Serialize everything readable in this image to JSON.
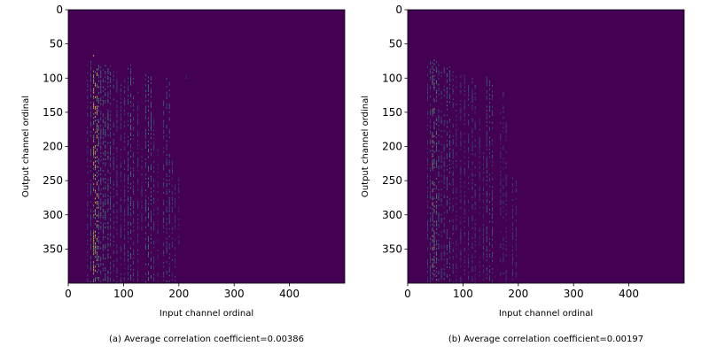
{
  "chart_data": [
    {
      "type": "heatmap",
      "xlabel": "Input channel ordinal",
      "ylabel": "Output channel ordinal",
      "xlim": [
        0,
        500
      ],
      "ylim": [
        400,
        0
      ],
      "x_ticks": [
        0,
        100,
        200,
        300,
        400
      ],
      "y_ticks": [
        0,
        50,
        100,
        150,
        200,
        250,
        300,
        350
      ],
      "caption": "(a) Average correlation coefficient=0.00386",
      "background_color": "#440154",
      "colormap": [
        "#440154",
        "#31688e",
        "#35b779",
        "#fde725"
      ],
      "column_bands": [
        {
          "x": 35,
          "y_start": 80,
          "y_end": 398,
          "intensity": 0.35
        },
        {
          "x": 41,
          "y_start": 75,
          "y_end": 398,
          "intensity": 0.45
        },
        {
          "x": 46,
          "y_start": 66,
          "y_end": 398,
          "intensity": 0.9
        },
        {
          "x": 49,
          "y_start": 70,
          "y_end": 398,
          "intensity": 1.0
        },
        {
          "x": 52,
          "y_start": 72,
          "y_end": 398,
          "intensity": 1.0
        },
        {
          "x": 55,
          "y_start": 75,
          "y_end": 398,
          "intensity": 0.7
        },
        {
          "x": 59,
          "y_start": 80,
          "y_end": 398,
          "intensity": 0.55
        },
        {
          "x": 63,
          "y_start": 78,
          "y_end": 398,
          "intensity": 0.55
        },
        {
          "x": 67,
          "y_start": 78,
          "y_end": 398,
          "intensity": 0.6
        },
        {
          "x": 72,
          "y_start": 80,
          "y_end": 398,
          "intensity": 0.6
        },
        {
          "x": 76,
          "y_start": 82,
          "y_end": 398,
          "intensity": 0.5
        },
        {
          "x": 82,
          "y_start": 90,
          "y_end": 398,
          "intensity": 0.4
        },
        {
          "x": 88,
          "y_start": 90,
          "y_end": 398,
          "intensity": 0.35
        },
        {
          "x": 95,
          "y_start": 95,
          "y_end": 398,
          "intensity": 0.35
        },
        {
          "x": 102,
          "y_start": 95,
          "y_end": 398,
          "intensity": 0.35
        },
        {
          "x": 108,
          "y_start": 85,
          "y_end": 398,
          "intensity": 0.45
        },
        {
          "x": 113,
          "y_start": 80,
          "y_end": 398,
          "intensity": 0.55
        },
        {
          "x": 118,
          "y_start": 100,
          "y_end": 398,
          "intensity": 0.4
        },
        {
          "x": 126,
          "y_start": 120,
          "y_end": 398,
          "intensity": 0.35
        },
        {
          "x": 133,
          "y_start": 200,
          "y_end": 320,
          "intensity": 0.3
        },
        {
          "x": 140,
          "y_start": 95,
          "y_end": 398,
          "intensity": 0.5
        },
        {
          "x": 145,
          "y_start": 92,
          "y_end": 398,
          "intensity": 0.6
        },
        {
          "x": 150,
          "y_start": 95,
          "y_end": 398,
          "intensity": 0.55
        },
        {
          "x": 155,
          "y_start": 150,
          "y_end": 398,
          "intensity": 0.4
        },
        {
          "x": 162,
          "y_start": 200,
          "y_end": 398,
          "intensity": 0.3
        },
        {
          "x": 172,
          "y_start": 130,
          "y_end": 398,
          "intensity": 0.4
        },
        {
          "x": 178,
          "y_start": 100,
          "y_end": 398,
          "intensity": 0.45
        },
        {
          "x": 183,
          "y_start": 100,
          "y_end": 398,
          "intensity": 0.45
        },
        {
          "x": 188,
          "y_start": 200,
          "y_end": 398,
          "intensity": 0.35
        },
        {
          "x": 193,
          "y_start": 250,
          "y_end": 398,
          "intensity": 0.3
        },
        {
          "x": 200,
          "y_start": 240,
          "y_end": 340,
          "intensity": 0.3
        },
        {
          "x": 213,
          "y_start": 93,
          "y_end": 108,
          "intensity": 0.25
        }
      ]
    },
    {
      "type": "heatmap",
      "xlabel": "Input channel ordinal",
      "ylabel": "Output channel ordinal",
      "xlim": [
        0,
        500
      ],
      "ylim": [
        400,
        0
      ],
      "x_ticks": [
        0,
        100,
        200,
        300,
        400
      ],
      "y_ticks": [
        0,
        50,
        100,
        150,
        200,
        250,
        300,
        350
      ],
      "caption": "(b) Average correlation coefficient=0.00197",
      "background_color": "#440154",
      "colormap": [
        "#440154",
        "#31688e",
        "#35b779",
        "#fde725"
      ],
      "column_bands": [
        {
          "x": 36,
          "y_start": 80,
          "y_end": 398,
          "intensity": 0.3
        },
        {
          "x": 41,
          "y_start": 72,
          "y_end": 398,
          "intensity": 0.4
        },
        {
          "x": 45,
          "y_start": 68,
          "y_end": 398,
          "intensity": 0.8
        },
        {
          "x": 48,
          "y_start": 70,
          "y_end": 398,
          "intensity": 0.7
        },
        {
          "x": 52,
          "y_start": 75,
          "y_end": 398,
          "intensity": 0.65
        },
        {
          "x": 56,
          "y_start": 80,
          "y_end": 398,
          "intensity": 0.5
        },
        {
          "x": 61,
          "y_start": 85,
          "y_end": 398,
          "intensity": 0.45
        },
        {
          "x": 66,
          "y_start": 85,
          "y_end": 398,
          "intensity": 0.45
        },
        {
          "x": 71,
          "y_start": 82,
          "y_end": 398,
          "intensity": 0.55
        },
        {
          "x": 76,
          "y_start": 80,
          "y_end": 398,
          "intensity": 0.5
        },
        {
          "x": 82,
          "y_start": 90,
          "y_end": 398,
          "intensity": 0.4
        },
        {
          "x": 88,
          "y_start": 95,
          "y_end": 398,
          "intensity": 0.3
        },
        {
          "x": 96,
          "y_start": 95,
          "y_end": 398,
          "intensity": 0.35
        },
        {
          "x": 103,
          "y_start": 95,
          "y_end": 398,
          "intensity": 0.35
        },
        {
          "x": 110,
          "y_start": 110,
          "y_end": 398,
          "intensity": 0.35
        },
        {
          "x": 117,
          "y_start": 85,
          "y_end": 398,
          "intensity": 0.4
        },
        {
          "x": 122,
          "y_start": 110,
          "y_end": 398,
          "intensity": 0.35
        },
        {
          "x": 130,
          "y_start": 140,
          "y_end": 398,
          "intensity": 0.3
        },
        {
          "x": 137,
          "y_start": 200,
          "y_end": 398,
          "intensity": 0.3
        },
        {
          "x": 143,
          "y_start": 95,
          "y_end": 398,
          "intensity": 0.45
        },
        {
          "x": 148,
          "y_start": 95,
          "y_end": 398,
          "intensity": 0.45
        },
        {
          "x": 153,
          "y_start": 110,
          "y_end": 398,
          "intensity": 0.4
        },
        {
          "x": 168,
          "y_start": 150,
          "y_end": 398,
          "intensity": 0.3
        },
        {
          "x": 173,
          "y_start": 120,
          "y_end": 398,
          "intensity": 0.35
        },
        {
          "x": 178,
          "y_start": 150,
          "y_end": 398,
          "intensity": 0.3
        },
        {
          "x": 190,
          "y_start": 240,
          "y_end": 398,
          "intensity": 0.3
        },
        {
          "x": 196,
          "y_start": 250,
          "y_end": 398,
          "intensity": 0.3
        },
        {
          "x": 209,
          "y_start": 93,
          "y_end": 100,
          "intensity": 0.2
        }
      ]
    }
  ]
}
